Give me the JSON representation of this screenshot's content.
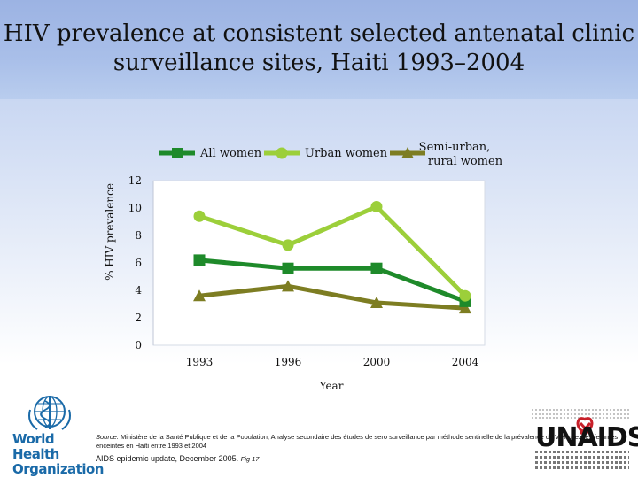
{
  "title_lines": [
    "HIV prevalence at consistent selected antenatal clinic",
    "surveillance sites, Haiti 1993–2004"
  ],
  "chart_data": {
    "type": "line",
    "title": "HIV prevalence at consistent selected antenatal clinic surveillance sites, Haiti 1993–2004",
    "xlabel": "Year",
    "ylabel": "% HIV prevalence",
    "categories": [
      "1993",
      "1996",
      "2000",
      "2004"
    ],
    "ylim": [
      0,
      12
    ],
    "yticks": [
      0,
      2,
      4,
      6,
      8,
      10,
      12
    ],
    "grid": false,
    "legend_position": "top",
    "series": [
      {
        "name": "All women",
        "marker": "square",
        "color": "#1e8a2a",
        "values": [
          6.2,
          5.6,
          5.6,
          3.2
        ]
      },
      {
        "name": "Urban women",
        "marker": "circle",
        "color": "#9ccf3a",
        "values": [
          9.4,
          7.3,
          10.1,
          3.6
        ]
      },
      {
        "name": "Semi-urban, rural women",
        "label_lines": [
          "Semi-urban,",
          "rural women"
        ],
        "marker": "triangle",
        "color": "#7d7d22",
        "values": [
          3.6,
          4.3,
          3.1,
          2.7
        ]
      }
    ]
  },
  "source": {
    "label": "Source:",
    "text": "Ministère de la Santé Publique et de la Population, Analyse secondaire des études de sero surveillance par méthode sentinelle de la prévalence du VIH chez les femmes enceintes en Haïti entre 1993 et 2004"
  },
  "footer": {
    "text": "AIDS epidemic update, December 2005.",
    "fig": "Fig 17"
  },
  "logos": {
    "who_name": "World Health Organization",
    "who_lines": [
      "World Health",
      "Organization"
    ],
    "unaids_name": "UNAIDS"
  }
}
